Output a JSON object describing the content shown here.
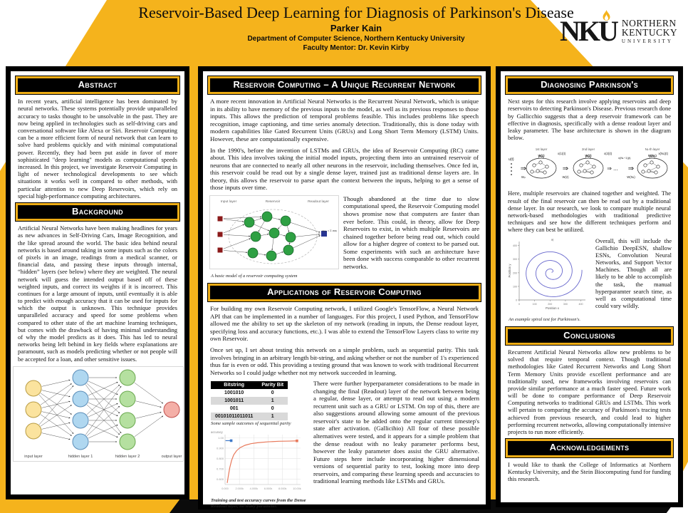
{
  "poster": {
    "title": "Reservoir-Based Deep Learning for Diagnosis of Parkinson's Disease",
    "author": "Parker Kain",
    "affiliation": "Department of Computer Science, Northern Kentucky University",
    "mentor": "Faculty Mentor: Dr. Kevin Kirby"
  },
  "logo": {
    "acronym": "NKU",
    "line1": "NORTHERN",
    "line2": "KENTUCKY",
    "line3": "UNIVERSITY"
  },
  "colors": {
    "gold": "#F5B31C",
    "bar_border": "#EEAD15",
    "table_gray": "#D9D9D9"
  },
  "left": {
    "abstract": {
      "title": "Abstract",
      "body": "In recent years, artificial intelligence has been dominated by neural networks. These systems potentially provide unparalleled accuracy to tasks thought to be unsolvable in the past. They are now being applied in technologies such as self-driving cars and conversational software like Alexa or Siri. Reservoir Computing can be a more efficient form of neural network that can learn to solve hard problems quickly and with minimal computational power. Recently, they had been put aside in favor of more sophisticated \"deep learning\" models as computational speeds increased. In this project, we investigate Reservoir Computing in light of newer technological developments to see which situations it works well in compared to other methods, with particular attention to new Deep Reservoirs, which rely on special high-performance computing architectures."
    },
    "background": {
      "title": "Background",
      "body": "Artificial Neural Networks have been making headlines for years as new advances in Self-Driving Cars, Image Recognition, and the like spread around the world. The basic idea behind neural networks is based around taking in some inputs such as the colors of pixels in an image, readings from a medical scanner, or financial data, and passing these inputs through internal, “hidden” layers (see below) where they are weighted. The neural network will guess the intended output based off of these weighted inputs, and correct its weights if it is incorrect. This continues for a large amount of inputs, until eventually it is able to predict with enough accuracy that it can be used for inputs for which the output is unknown. This technique provides unparalleled accuracy and speed for some problems when compared to other state of the art machine learning techniques, but comes with the drawback of having minimal understanding of why the model predicts as it does. This has led to neural networks being left behind in key fields where explanations are paramount, such as models predicting whether or not people will be accepted for a loan, and other sensitive issues."
    },
    "nn_figure": {
      "layers": [
        {
          "label": "input layer",
          "count": 3,
          "fill": "#FBE39E",
          "stroke": "#B89B43"
        },
        {
          "label": "hidden layer 1",
          "count": 4,
          "fill": "#AFD7F0",
          "stroke": "#5B8DB8"
        },
        {
          "label": "hidden layer 2",
          "count": 4,
          "fill": "#B5E0A0",
          "stroke": "#6AA84F"
        },
        {
          "label": "output layer",
          "count": 1,
          "fill": "#F4AFA7",
          "stroke": "#C0504D"
        }
      ]
    }
  },
  "middle": {
    "section1": {
      "title": "Reservoir Computing – A Unique Recurrent Network",
      "para1": "A more recent innovation in Artificial Neural Networks is the Recurrent Neural Network, which is unique in its ability to have memory of the previous inputs to the model, as well as its previous responses to those inputs. This allows the prediction of temporal problems feasible. This includes problems like speech recognition, image captioning, and time series anomaly detection. Traditionally, this is done today with modern capabilities like Gated Recurrent Units (GRUs) and Long Short Term Memory (LSTM) Units. However, these are computationally expensive.",
      "para2": "In the 1990's, before the invention of LSTMs and GRUs, the idea of Reservoir Computing (RC) came about. This idea involves taking the initial model inputs, projecting them into an untrained reservoir of neurons that are connected to nearly all other neurons in the reservoir, including themselves. Once fed in, this reservoir could be read out by a single dense layer, trained just as traditional dense layers are. In theory, this allows the reservoir to parse apart the context between the inputs, helping to get a sense of those inputs over time.",
      "para3": "Though abandoned at the time due to slow computational speed, the Reservoir Computing model shows promise now that computers are faster than ever before. This could, in theory, allow for Deep Reservoirs to exist, in which multiple Reservoirs are chained together before being read out, which could allow for a higher degree of context to be parsed out. Some experiments with such an architecture have been done with success comparable to other recurrent networks.",
      "figure": {
        "labels": [
          "Input layer",
          "Reservoir",
          "Readout layer"
        ],
        "formula": "yₒᵤₜ = Σ wᵢxᵢ",
        "caption": "A basic model of a reservoir computing system"
      }
    },
    "section2": {
      "title": "Applications of Reservoir Computing",
      "para1": "For building my own Reservoir Computing network, I utilized Google's TensorFlow, a Neural Network API that can be implemented in a number of languages. For this project, I used Python, and TensorFlow allowed me the ability to set up the skeleton of my network (reading in inputs, the Dense readout layer, specifying loss and accuracy functions, etc.). I was able to extend the TensorFlow Layers class to write my own Reservoir.",
      "para2": "Once set up, I set about testing this network on a simple problem, such as sequential parity. This task involves bringing in an arbitrary length bit-string, and asking whether or not the number of 1's experienced thus far is even or odd. This providing a testing ground that was known to work with traditional Recurrent Networks so I could judge whether not my network succeeded in learning.",
      "para3": "There were further hyperparameter considerations to be made in changing the final (Readout) layer of the network between being a regular, dense layer, or attempt to read out using a modern recurrent unit such as a GRU or LSTM. On top of this, there are also suggestions around allowing some amount of the previous reservoir's state to be added onto the regular current timestep's state after activation. (Gallicihio) All four of these possible alternatives were tested, and it appears for a simple problem that the dense readout with no leaky parameter performs best, however the leaky parameter does assist the GRU alternative. Future steps here include incorporating higher dimensional versions of sequential parity to test, looking more into deep reservoirs, and comparing these learning speeds and accuracies to traditional learning methods like LSTMs and GRUs.",
      "table": {
        "headers": [
          "Bitstring",
          "Parity Bit"
        ],
        "rows": [
          [
            "1001010",
            "0"
          ],
          [
            "1001011",
            "1"
          ],
          [
            "001",
            "0"
          ],
          [
            "00101011011011",
            "1"
          ]
        ],
        "caption": "Some sample outcomes of sequential parity"
      }
    }
  },
  "right": {
    "diagnosing": {
      "title": "Diagnosing Parkinson's",
      "para1": "Next steps for this research involve applying reservoirs and deep reservoirs to detecting Parkinson's Disease. Previous research done by Gallicchio suggests that a deep reservoir framework can be effective in diagnosis, specifically with a dense readout layer and leaky parameter. The base architecture is shown in the diagram below.",
      "para2": "Here, multiple reservoirs are chained together and weighted. The result of the final reservoir can then be read out by a traditional dense layer. In our research, we look to compare multiple neural network-based methodologies with traditional predictive techniques and see how the different techniques perform and where they can best be utilized.",
      "para3": "Overall, this will include the Gallichio DeepESN, shallow ESNs, Convolution Neural Networks, and Support Vector Machines. Though all are likely to be able to accomplish the task, the manual hyperparamter search time, as well as computational time could vary wildly."
    },
    "chain": {
      "layer_labels": [
        "1st layer",
        "2nd layer",
        "Nʟ-th layer"
      ],
      "u_label": "u(t)",
      "win_label": "Wᵢₙ",
      "w_labels": [
        "W(1)",
        "W(2)",
        "W(Nʟ)"
      ],
      "x_labels": [
        "x(1)(t)",
        "x(2)(t)",
        "x(Nʟ−1)(t)",
        "x(Nʟ)(t)"
      ],
      "dots": "⇒ ..."
    },
    "conclusions": {
      "title": "Conclusions",
      "body": "Recurrent Artificial Neural Networks allow new problems to be solved that require temporal context. Though traditional methodologies like Gated Recurrent Networks and Long Short Term Memory Units provide excellent performance and are traditionally used, new frameworks involving reservoirs can provide similar performance at a much faster speed. Future work will be done to compare performance of Deep Reservoir Computing networks to traditional GRUs and LSTMs. This work will pertain to comparing the accuracy of Parkinson's tracing tests achieved from previous research, and could lead to higher performing recurrent networks, allowing computationally intensive projects to run more efficiently."
    },
    "ack": {
      "title": "Acknowledgements",
      "body": "I would like to thank the College of Informatics at Northern Kentucky University, and the Stein Biocomputing fund for funding this research."
    }
  },
  "chart_data": [
    {
      "type": "line",
      "title": "accuracy",
      "x_ticks": [
        {
          "v": 0,
          "label": "0.000"
        },
        {
          "v": 2000,
          "label": "2.000k"
        },
        {
          "v": 4000,
          "label": "4.000k"
        },
        {
          "v": 6000,
          "label": "6.000k"
        },
        {
          "v": 8000,
          "label": "8.000k"
        },
        {
          "v": 10000,
          "label": "10.00k"
        }
      ],
      "y_ticks": [
        {
          "v": 0.6,
          "label": "0.600"
        },
        {
          "v": 0.7,
          "label": "0.700"
        },
        {
          "v": 0.8,
          "label": "0.800"
        },
        {
          "v": 0.9,
          "label": "0.900"
        },
        {
          "v": 1.0,
          "label": "1.00"
        }
      ],
      "xlim": [
        0,
        10500
      ],
      "ylim": [
        0.55,
        1.03
      ],
      "grid": true,
      "series": [
        {
          "name": "test",
          "color": "#3C78C8",
          "points": [
            [
              60,
              0.972
            ],
            [
              850,
              0.972
            ]
          ]
        },
        {
          "name": "training",
          "color": "#E8795B",
          "points": [
            [
              300,
              0.565
            ],
            [
              450,
              0.63
            ],
            [
              650,
              0.71
            ],
            [
              900,
              0.78
            ],
            [
              1200,
              0.835
            ],
            [
              1600,
              0.875
            ],
            [
              2100,
              0.905
            ],
            [
              2800,
              0.928
            ],
            [
              3600,
              0.943
            ],
            [
              4500,
              0.952
            ],
            [
              6000,
              0.961
            ],
            [
              7500,
              0.966
            ],
            [
              9000,
              0.968
            ],
            [
              10000,
              0.97
            ]
          ]
        }
      ],
      "caption": "Training and test accuracy curves from the Dense Readout layer, no leaky parameter."
    },
    {
      "type": "line",
      "title": "a)",
      "xlabel": "Position x",
      "ylabel": "Position y",
      "x_ticks": [
        0,
        100,
        200,
        300,
        400
      ],
      "y_ticks": [
        0,
        100,
        200,
        300,
        400
      ],
      "xlim": [
        0,
        430
      ],
      "ylim": [
        0,
        430
      ],
      "spiral": {
        "cx": 210,
        "cy": 205,
        "turns": 3.1,
        "max_r": 198,
        "end_angle": 0.1,
        "color": "#6666CC"
      },
      "caption": "An example spiral test for Parkinson's."
    }
  ]
}
